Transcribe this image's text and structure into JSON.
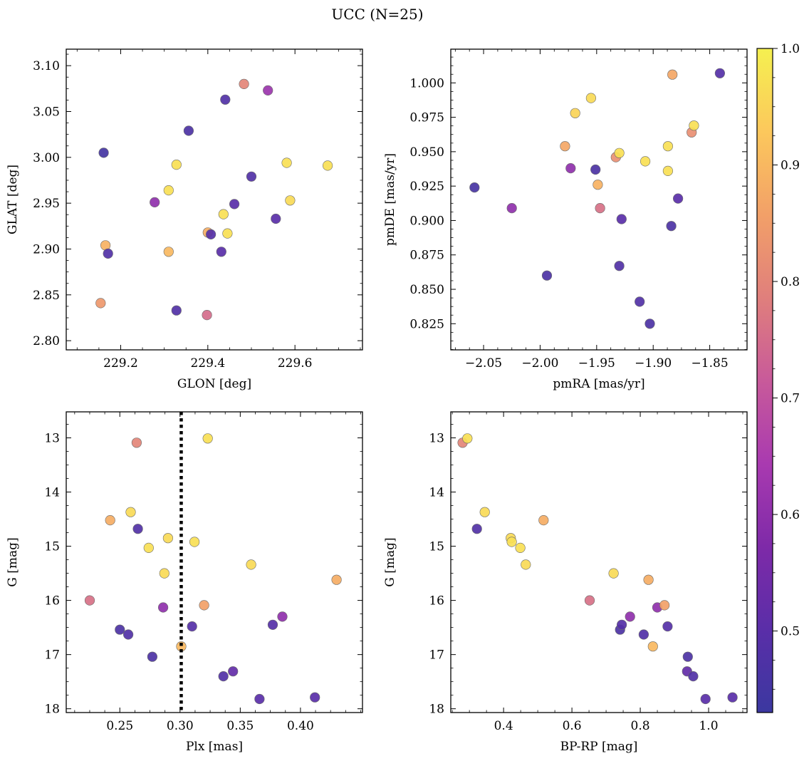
{
  "title": "UCC (N=25)",
  "colorbar": {
    "min": 0.43,
    "max": 1.0,
    "ticks": [
      "0.5",
      "0.6",
      "0.7",
      "0.8",
      "0.9",
      "1.0"
    ],
    "colormap": "plasma",
    "stops": [
      "#3b38a0",
      "#5a2ea8",
      "#7e2aa8",
      "#a93ab0",
      "#c85a9a",
      "#e07f7c",
      "#f2a068",
      "#fcc85c",
      "#f5f050"
    ]
  },
  "chart_data": [
    {
      "type": "scatter",
      "id": "glon-glat",
      "xlabel": "GLON [deg]",
      "ylabel": "GLAT [deg]",
      "xlim": [
        229.075,
        229.755
      ],
      "ylim": [
        2.79,
        3.118
      ],
      "x_ticks": [
        229.2,
        229.4,
        229.6
      ],
      "x_tick_labels": [
        "229.2",
        "229.4",
        "229.6"
      ],
      "y_ticks": [
        2.8,
        2.85,
        2.9,
        2.95,
        3.0,
        3.05,
        3.1
      ],
      "y_tick_labels": [
        "2.80",
        "2.85",
        "2.90",
        "2.95",
        "3.00",
        "3.05",
        "3.10"
      ],
      "y_inverted": false,
      "grid": false,
      "points": [
        {
          "x": 229.154,
          "y": 2.841,
          "c": 0.84
        },
        {
          "x": 229.161,
          "y": 3.005,
          "c": 0.45
        },
        {
          "x": 229.165,
          "y": 2.904,
          "c": 0.89
        },
        {
          "x": 229.171,
          "y": 2.895,
          "c": 0.48
        },
        {
          "x": 229.278,
          "y": 2.951,
          "c": 0.6
        },
        {
          "x": 229.31,
          "y": 2.897,
          "c": 0.9
        },
        {
          "x": 229.31,
          "y": 2.964,
          "c": 0.97
        },
        {
          "x": 229.328,
          "y": 2.992,
          "c": 0.97
        },
        {
          "x": 229.328,
          "y": 2.833,
          "c": 0.48
        },
        {
          "x": 229.356,
          "y": 3.029,
          "c": 0.47
        },
        {
          "x": 229.398,
          "y": 2.828,
          "c": 0.75
        },
        {
          "x": 229.4,
          "y": 2.918,
          "c": 0.88
        },
        {
          "x": 229.407,
          "y": 2.916,
          "c": 0.49
        },
        {
          "x": 229.431,
          "y": 2.897,
          "c": 0.5
        },
        {
          "x": 229.436,
          "y": 2.938,
          "c": 0.97
        },
        {
          "x": 229.44,
          "y": 3.063,
          "c": 0.48
        },
        {
          "x": 229.445,
          "y": 2.917,
          "c": 0.97
        },
        {
          "x": 229.461,
          "y": 2.949,
          "c": 0.5
        },
        {
          "x": 229.483,
          "y": 3.08,
          "c": 0.8
        },
        {
          "x": 229.5,
          "y": 2.979,
          "c": 0.48
        },
        {
          "x": 229.538,
          "y": 3.073,
          "c": 0.62
        },
        {
          "x": 229.556,
          "y": 2.933,
          "c": 0.5
        },
        {
          "x": 229.581,
          "y": 2.994,
          "c": 0.97
        },
        {
          "x": 229.589,
          "y": 2.953,
          "c": 0.96
        },
        {
          "x": 229.675,
          "y": 2.991,
          "c": 0.97
        }
      ]
    },
    {
      "type": "scatter",
      "id": "pm",
      "xlabel": "pmRA [mas/yr]",
      "ylabel": "pmDE [mas/yr]",
      "xlim": [
        -2.079,
        -1.817
      ],
      "ylim": [
        0.806,
        1.0245
      ],
      "x_ticks": [
        -2.05,
        -2.0,
        -1.95,
        -1.9,
        -1.85
      ],
      "x_tick_labels": [
        "−2.05",
        "−2.00",
        "−1.95",
        "−1.90",
        "−1.85"
      ],
      "y_ticks": [
        0.825,
        0.85,
        0.875,
        0.9,
        0.925,
        0.95,
        0.975,
        1.0
      ],
      "y_tick_labels": [
        "0.825",
        "0.850",
        "0.875",
        "0.900",
        "0.925",
        "0.950",
        "0.975",
        "1.000"
      ],
      "y_inverted": false,
      "grid": false,
      "points": [
        {
          "x": -2.058,
          "y": 0.924,
          "c": 0.46
        },
        {
          "x": -2.025,
          "y": 0.909,
          "c": 0.6
        },
        {
          "x": -1.994,
          "y": 0.86,
          "c": 0.47
        },
        {
          "x": -1.978,
          "y": 0.954,
          "c": 0.87
        },
        {
          "x": -1.973,
          "y": 0.938,
          "c": 0.6
        },
        {
          "x": -1.969,
          "y": 0.978,
          "c": 0.95
        },
        {
          "x": -1.955,
          "y": 0.989,
          "c": 0.96
        },
        {
          "x": -1.951,
          "y": 0.937,
          "c": 0.47
        },
        {
          "x": -1.949,
          "y": 0.926,
          "c": 0.89
        },
        {
          "x": -1.947,
          "y": 0.909,
          "c": 0.76
        },
        {
          "x": -1.933,
          "y": 0.946,
          "c": 0.82
        },
        {
          "x": -1.93,
          "y": 0.949,
          "c": 0.97
        },
        {
          "x": -1.93,
          "y": 0.867,
          "c": 0.48
        },
        {
          "x": -1.928,
          "y": 0.901,
          "c": 0.5
        },
        {
          "x": -1.912,
          "y": 0.841,
          "c": 0.48
        },
        {
          "x": -1.907,
          "y": 0.943,
          "c": 0.97
        },
        {
          "x": -1.903,
          "y": 0.825,
          "c": 0.47
        },
        {
          "x": -1.887,
          "y": 0.954,
          "c": 0.97
        },
        {
          "x": -1.887,
          "y": 0.936,
          "c": 0.97
        },
        {
          "x": -1.884,
          "y": 0.896,
          "c": 0.47
        },
        {
          "x": -1.883,
          "y": 1.006,
          "c": 0.87
        },
        {
          "x": -1.878,
          "y": 0.916,
          "c": 0.5
        },
        {
          "x": -1.866,
          "y": 0.964,
          "c": 0.82
        },
        {
          "x": -1.864,
          "y": 0.969,
          "c": 0.97
        },
        {
          "x": -1.841,
          "y": 1.007,
          "c": 0.49
        }
      ]
    },
    {
      "type": "scatter",
      "id": "plx-g",
      "xlabel": "Plx [mas]",
      "ylabel": "G [mag]",
      "xlim": [
        0.2055,
        0.4515
      ],
      "ylim": [
        12.52,
        18.07
      ],
      "x_ticks": [
        0.25,
        0.3,
        0.35,
        0.4
      ],
      "x_tick_labels": [
        "0.25",
        "0.30",
        "0.35",
        "0.40"
      ],
      "y_ticks": [
        13,
        14,
        15,
        16,
        17,
        18
      ],
      "y_tick_labels": [
        "13",
        "14",
        "15",
        "16",
        "17",
        "18"
      ],
      "y_inverted": true,
      "grid": false,
      "vline": {
        "x": 0.301,
        "style": "dotted",
        "color": "#000000"
      },
      "points": [
        {
          "x": 0.225,
          "y": 16.0,
          "c": 0.76
        },
        {
          "x": 0.242,
          "y": 14.52,
          "c": 0.88
        },
        {
          "x": 0.25,
          "y": 16.54,
          "c": 0.47
        },
        {
          "x": 0.257,
          "y": 16.63,
          "c": 0.48
        },
        {
          "x": 0.259,
          "y": 14.37,
          "c": 0.96
        },
        {
          "x": 0.264,
          "y": 13.09,
          "c": 0.8
        },
        {
          "x": 0.265,
          "y": 14.68,
          "c": 0.48
        },
        {
          "x": 0.274,
          "y": 15.03,
          "c": 0.97
        },
        {
          "x": 0.277,
          "y": 17.04,
          "c": 0.47
        },
        {
          "x": 0.286,
          "y": 16.13,
          "c": 0.6
        },
        {
          "x": 0.287,
          "y": 15.5,
          "c": 0.96
        },
        {
          "x": 0.29,
          "y": 14.85,
          "c": 0.96
        },
        {
          "x": 0.301,
          "y": 16.85,
          "c": 0.9
        },
        {
          "x": 0.31,
          "y": 16.48,
          "c": 0.49
        },
        {
          "x": 0.312,
          "y": 14.92,
          "c": 0.97
        },
        {
          "x": 0.32,
          "y": 16.09,
          "c": 0.86
        },
        {
          "x": 0.323,
          "y": 13.01,
          "c": 0.97
        },
        {
          "x": 0.336,
          "y": 17.4,
          "c": 0.48
        },
        {
          "x": 0.344,
          "y": 17.31,
          "c": 0.52
        },
        {
          "x": 0.359,
          "y": 15.34,
          "c": 0.96
        },
        {
          "x": 0.366,
          "y": 17.82,
          "c": 0.5
        },
        {
          "x": 0.377,
          "y": 16.45,
          "c": 0.49
        },
        {
          "x": 0.385,
          "y": 16.3,
          "c": 0.6
        },
        {
          "x": 0.412,
          "y": 17.79,
          "c": 0.5
        },
        {
          "x": 0.43,
          "y": 15.62,
          "c": 0.88
        }
      ]
    },
    {
      "type": "scatter",
      "id": "cmd",
      "xlabel": "BP-RP [mag]",
      "ylabel": "G [mag]",
      "xlim": [
        0.2455,
        1.1125
      ],
      "ylim": [
        12.52,
        18.07
      ],
      "x_ticks": [
        0.4,
        0.6,
        0.8,
        1.0
      ],
      "x_tick_labels": [
        "0.4",
        "0.6",
        "0.8",
        "1.0"
      ],
      "y_ticks": [
        13,
        14,
        15,
        16,
        17,
        18
      ],
      "y_tick_labels": [
        "13",
        "14",
        "15",
        "16",
        "17",
        "18"
      ],
      "y_inverted": true,
      "grid": false,
      "points": [
        {
          "x": 0.28,
          "y": 13.09,
          "c": 0.8
        },
        {
          "x": 0.294,
          "y": 13.01,
          "c": 0.97
        },
        {
          "x": 0.322,
          "y": 14.68,
          "c": 0.48
        },
        {
          "x": 0.345,
          "y": 14.37,
          "c": 0.96
        },
        {
          "x": 0.421,
          "y": 14.85,
          "c": 0.96
        },
        {
          "x": 0.424,
          "y": 14.92,
          "c": 0.97
        },
        {
          "x": 0.449,
          "y": 15.03,
          "c": 0.97
        },
        {
          "x": 0.465,
          "y": 15.34,
          "c": 0.96
        },
        {
          "x": 0.517,
          "y": 14.52,
          "c": 0.88
        },
        {
          "x": 0.652,
          "y": 16.0,
          "c": 0.76
        },
        {
          "x": 0.722,
          "y": 15.5,
          "c": 0.96
        },
        {
          "x": 0.741,
          "y": 16.54,
          "c": 0.47
        },
        {
          "x": 0.746,
          "y": 16.45,
          "c": 0.49
        },
        {
          "x": 0.77,
          "y": 16.3,
          "c": 0.6
        },
        {
          "x": 0.81,
          "y": 16.63,
          "c": 0.48
        },
        {
          "x": 0.824,
          "y": 15.62,
          "c": 0.88
        },
        {
          "x": 0.837,
          "y": 16.85,
          "c": 0.9
        },
        {
          "x": 0.85,
          "y": 16.13,
          "c": 0.6
        },
        {
          "x": 0.871,
          "y": 16.09,
          "c": 0.86
        },
        {
          "x": 0.88,
          "y": 16.48,
          "c": 0.49
        },
        {
          "x": 0.937,
          "y": 17.31,
          "c": 0.52
        },
        {
          "x": 0.939,
          "y": 17.04,
          "c": 0.47
        },
        {
          "x": 0.955,
          "y": 17.4,
          "c": 0.48
        },
        {
          "x": 0.991,
          "y": 17.82,
          "c": 0.5
        },
        {
          "x": 1.07,
          "y": 17.79,
          "c": 0.5
        }
      ]
    }
  ]
}
